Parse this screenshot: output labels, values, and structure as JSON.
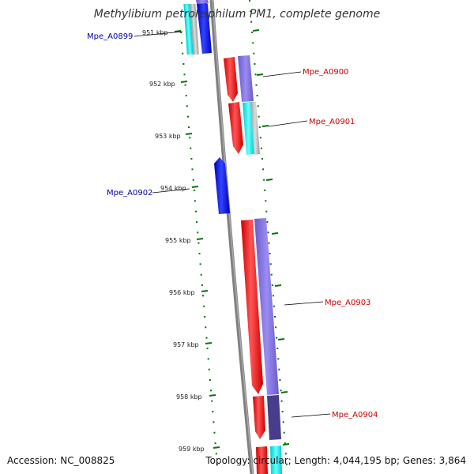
{
  "title": "Methylibium petroleiphilum PM1, complete genome",
  "footer": {
    "accession": "Accession: NC_008825",
    "topology": "Topology: circular; Length: 4,044,195 bp; Genes: 3,864"
  },
  "ticks": [
    "951 kbp",
    "952 kbp",
    "953 kbp",
    "954 kbp",
    "955 kbp",
    "956 kbp",
    "957 kbp",
    "958 kbp",
    "959 kbp"
  ],
  "gene_labels": [
    {
      "name": "Mpe_A0899",
      "strand": "reverse"
    },
    {
      "name": "Mpe_A0900",
      "strand": "forward"
    },
    {
      "name": "Mpe_A0901",
      "strand": "forward"
    },
    {
      "name": "Mpe_A0902",
      "strand": "reverse"
    },
    {
      "name": "Mpe_A0903",
      "strand": "forward"
    },
    {
      "name": "Mpe_A0904",
      "strand": "forward"
    }
  ],
  "colors": {
    "forward_cds": "#ff0000",
    "reverse_cds": "#0000ff",
    "forward_label": "#cc0000",
    "reverse_label": "#0000aa",
    "backbone": "#7f7f7f",
    "tick": "#007700",
    "cog_purple": "#7a6ad6",
    "cog_dark": "#483d8b",
    "cog_cyan": "#00dddd",
    "cog_gray": "#aaaaaa"
  }
}
